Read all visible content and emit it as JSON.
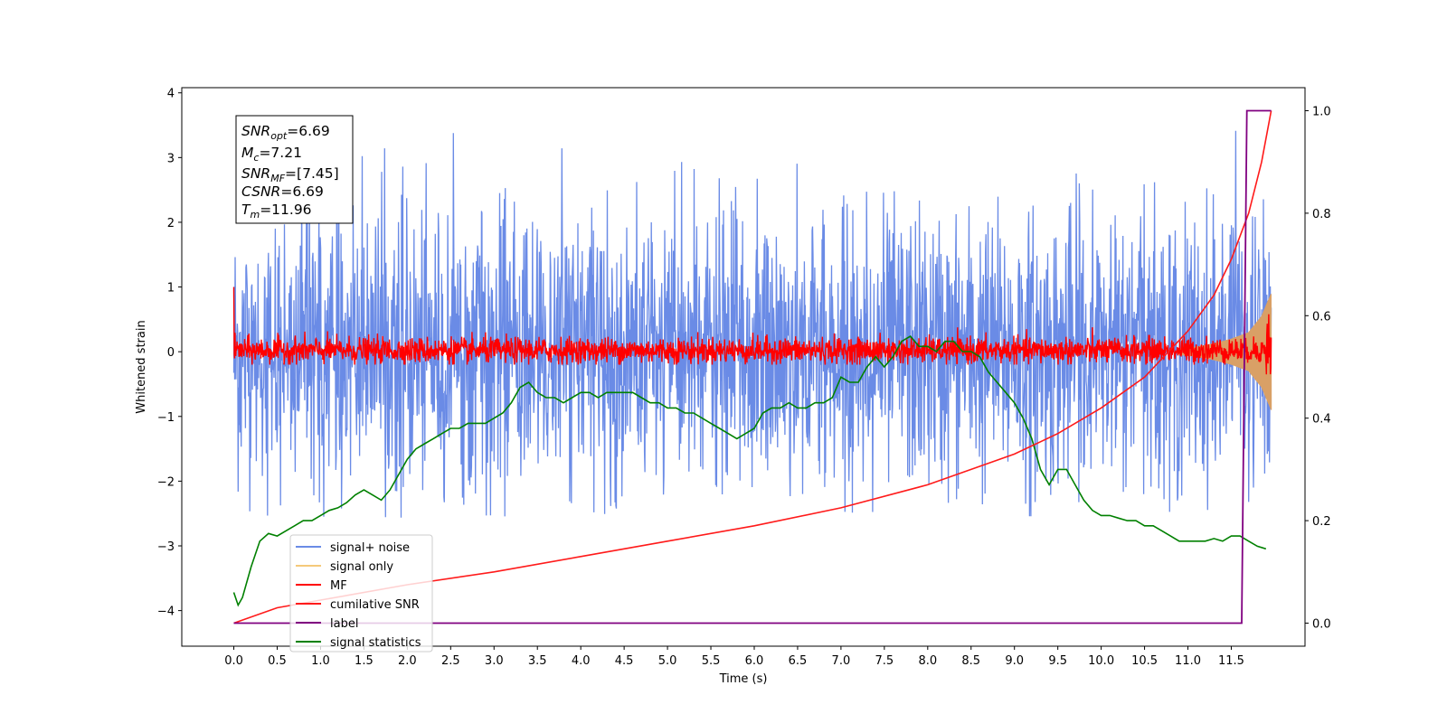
{
  "chart_data": {
    "type": "line",
    "title": "",
    "xlabel": "Time (s)",
    "ylabel": "Whitened strain",
    "xlim": [
      -0.6,
      12.35
    ],
    "ylim": [
      -4.55,
      4.08
    ],
    "y2lim": [
      -0.045,
      1.045
    ],
    "xticks": [
      "0.0",
      "0.5",
      "1.0",
      "1.5",
      "2.0",
      "2.5",
      "3.0",
      "3.5",
      "4.0",
      "4.5",
      "5.0",
      "5.5",
      "6.0",
      "6.5",
      "7.0",
      "7.5",
      "8.0",
      "8.5",
      "9.0",
      "9.5",
      "10.0",
      "10.5",
      "11.0",
      "11.5"
    ],
    "yticks": [
      "4",
      "3",
      "2",
      "1",
      "0",
      "−1",
      "−2",
      "−3",
      "−4"
    ],
    "y2ticks": [
      "1.0",
      "0.8",
      "0.6",
      "0.4",
      "0.2",
      "0.0"
    ],
    "grid": false,
    "legend": {
      "location": "lower-left",
      "entries": [
        "signal+ noise",
        "signal only",
        "MF",
        "cumilative SNR",
        "label",
        "signal statistics"
      ]
    },
    "colors": {
      "signal_noise": "#6a8be6",
      "signal_only": "#f5c97a",
      "mf": "#ff0000",
      "cumulative_snr": "#ff1a1a",
      "label": "#800080",
      "statistics": "#008000"
    },
    "annotation": {
      "snr_opt": {
        "main": "SNR",
        "sub": "opt",
        "value": "=6.69"
      },
      "mc": {
        "main": "M",
        "sub": "c",
        "value": "=7.21"
      },
      "snr_mf": {
        "main": "SNR",
        "sub": "MF",
        "value": "=[7.45]"
      },
      "csnr": {
        "main": "CSNR",
        "sub": "",
        "value": "=6.69"
      },
      "tm": {
        "main": "T",
        "sub": "m",
        "value": "=11.96"
      }
    },
    "series": [
      {
        "name": "signal+ noise",
        "axis": "left",
        "description_range": [
          -2.4,
          3.7
        ],
        "x_range": [
          0.0,
          11.96
        ]
      },
      {
        "name": "signal only",
        "axis": "left",
        "x": [
          10.9,
          11.1,
          11.3,
          11.5,
          11.7,
          11.85,
          11.96
        ],
        "amplitude": [
          0.05,
          0.08,
          0.13,
          0.2,
          0.3,
          0.55,
          0.9
        ]
      },
      {
        "name": "MF",
        "axis": "left",
        "x_range": [
          0.0,
          11.96
        ],
        "amplitude": 0.17,
        "start_value": 1.0
      },
      {
        "name": "cumilative SNR",
        "axis": "right",
        "x": [
          0.0,
          0.5,
          1.0,
          2.0,
          3.0,
          4.0,
          5.0,
          6.0,
          7.0,
          8.0,
          9.0,
          9.5,
          10.0,
          10.5,
          11.0,
          11.3,
          11.5,
          11.7,
          11.85,
          11.96
        ],
        "values": [
          0.0,
          0.03,
          0.045,
          0.075,
          0.1,
          0.13,
          0.16,
          0.19,
          0.225,
          0.27,
          0.33,
          0.37,
          0.42,
          0.48,
          0.57,
          0.64,
          0.71,
          0.8,
          0.9,
          1.0
        ]
      },
      {
        "name": "label",
        "axis": "right",
        "x": [
          0.0,
          11.62,
          11.68,
          11.96
        ],
        "values": [
          0.0,
          0.0,
          1.0,
          1.0
        ]
      },
      {
        "name": "signal statistics",
        "axis": "right",
        "x": [
          0.0,
          0.05,
          0.1,
          0.2,
          0.3,
          0.4,
          0.5,
          0.6,
          0.7,
          0.8,
          0.9,
          1.0,
          1.1,
          1.2,
          1.3,
          1.4,
          1.5,
          1.6,
          1.7,
          1.8,
          1.9,
          2.0,
          2.1,
          2.2,
          2.3,
          2.4,
          2.5,
          2.6,
          2.7,
          2.8,
          2.9,
          3.0,
          3.1,
          3.2,
          3.3,
          3.4,
          3.5,
          3.6,
          3.7,
          3.8,
          3.9,
          4.0,
          4.1,
          4.2,
          4.3,
          4.4,
          4.5,
          4.6,
          4.7,
          4.8,
          4.9,
          5.0,
          5.1,
          5.2,
          5.3,
          5.4,
          5.5,
          5.6,
          5.7,
          5.8,
          5.9,
          6.0,
          6.1,
          6.2,
          6.3,
          6.4,
          6.5,
          6.6,
          6.7,
          6.8,
          6.9,
          7.0,
          7.1,
          7.2,
          7.3,
          7.4,
          7.5,
          7.6,
          7.7,
          7.8,
          7.9,
          8.0,
          8.1,
          8.2,
          8.3,
          8.4,
          8.5,
          8.6,
          8.7,
          8.8,
          8.9,
          9.0,
          9.1,
          9.2,
          9.3,
          9.4,
          9.5,
          9.6,
          9.7,
          9.8,
          9.9,
          10.0,
          10.1,
          10.2,
          10.3,
          10.4,
          10.5,
          10.6,
          10.7,
          10.8,
          10.9,
          11.0,
          11.1,
          11.2,
          11.3,
          11.4,
          11.5,
          11.6,
          11.7,
          11.8,
          11.9
        ],
        "values": [
          0.06,
          0.035,
          0.05,
          0.11,
          0.16,
          0.175,
          0.17,
          0.18,
          0.19,
          0.2,
          0.2,
          0.21,
          0.22,
          0.225,
          0.235,
          0.25,
          0.26,
          0.25,
          0.24,
          0.26,
          0.29,
          0.32,
          0.34,
          0.35,
          0.36,
          0.37,
          0.38,
          0.38,
          0.39,
          0.39,
          0.39,
          0.4,
          0.41,
          0.43,
          0.46,
          0.47,
          0.45,
          0.44,
          0.44,
          0.43,
          0.44,
          0.45,
          0.45,
          0.44,
          0.45,
          0.45,
          0.45,
          0.45,
          0.44,
          0.43,
          0.43,
          0.42,
          0.42,
          0.41,
          0.41,
          0.4,
          0.39,
          0.38,
          0.37,
          0.36,
          0.37,
          0.38,
          0.41,
          0.42,
          0.42,
          0.43,
          0.42,
          0.42,
          0.43,
          0.43,
          0.44,
          0.48,
          0.47,
          0.47,
          0.5,
          0.52,
          0.5,
          0.52,
          0.55,
          0.56,
          0.54,
          0.54,
          0.53,
          0.55,
          0.55,
          0.53,
          0.53,
          0.52,
          0.49,
          0.47,
          0.45,
          0.43,
          0.4,
          0.36,
          0.3,
          0.27,
          0.3,
          0.3,
          0.27,
          0.24,
          0.22,
          0.21,
          0.21,
          0.205,
          0.2,
          0.2,
          0.19,
          0.19,
          0.18,
          0.17,
          0.16,
          0.16,
          0.16,
          0.16,
          0.165,
          0.16,
          0.17,
          0.17,
          0.16,
          0.15,
          0.145
        ]
      }
    ]
  }
}
